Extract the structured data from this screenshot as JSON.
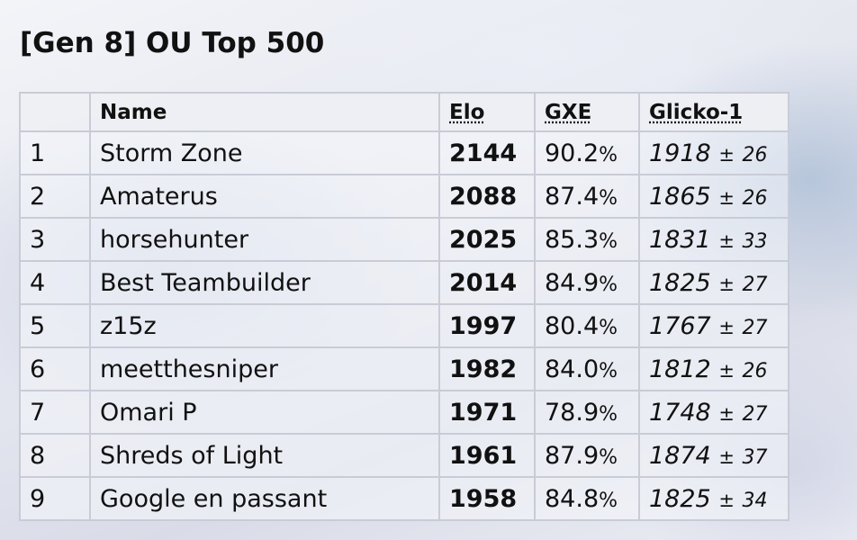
{
  "title": "[Gen 8] OU Top 500",
  "table": {
    "headers": {
      "rank": "",
      "name": "Name",
      "elo": "Elo",
      "gxe": "GXE",
      "glicko": "Glicko-1"
    },
    "rows": [
      {
        "rank": "1",
        "name": "Storm Zone",
        "elo": "2144",
        "gxe": "90.2",
        "glicko": "1918",
        "dev": "26"
      },
      {
        "rank": "2",
        "name": "Amaterus",
        "elo": "2088",
        "gxe": "87.4",
        "glicko": "1865",
        "dev": "26"
      },
      {
        "rank": "3",
        "name": "horsehunter",
        "elo": "2025",
        "gxe": "85.3",
        "glicko": "1831",
        "dev": "33"
      },
      {
        "rank": "4",
        "name": "Best Teambuilder",
        "elo": "2014",
        "gxe": "84.9",
        "glicko": "1825",
        "dev": "27"
      },
      {
        "rank": "5",
        "name": "z15z",
        "elo": "1997",
        "gxe": "80.4",
        "glicko": "1767",
        "dev": "27"
      },
      {
        "rank": "6",
        "name": "meetthesniper",
        "elo": "1982",
        "gxe": "84.0",
        "glicko": "1812",
        "dev": "26"
      },
      {
        "rank": "7",
        "name": "Omari P",
        "elo": "1971",
        "gxe": "78.9",
        "glicko": "1748",
        "dev": "27"
      },
      {
        "rank": "8",
        "name": "Shreds of Light",
        "elo": "1961",
        "gxe": "87.9",
        "glicko": "1874",
        "dev": "37"
      },
      {
        "rank": "9",
        "name": "Google en passant",
        "elo": "1958",
        "gxe": "84.8",
        "glicko": "1825",
        "dev": "34"
      }
    ],
    "percent_sign": "%",
    "plus_minus_sign": "±"
  }
}
